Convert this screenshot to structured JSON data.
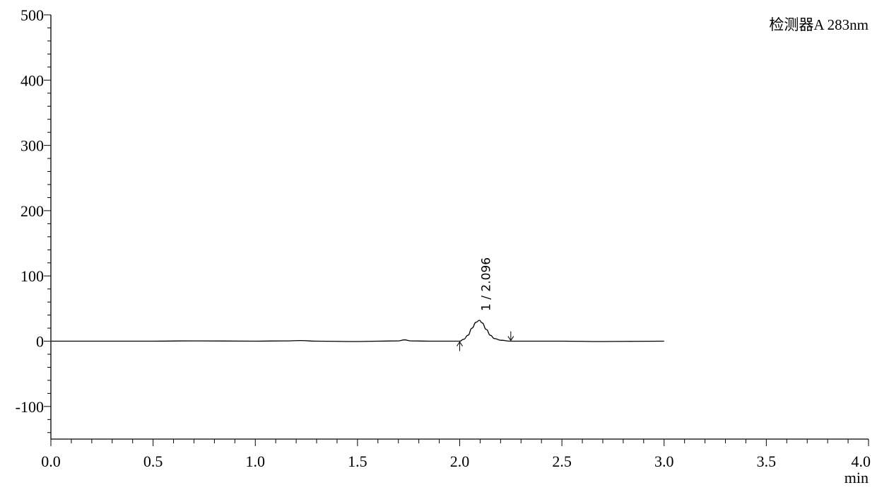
{
  "chart_data": {
    "type": "line",
    "detector_label": "检测器A 283nm",
    "x_unit": "min",
    "xlim": [
      0.0,
      4.0
    ],
    "ylim": [
      -150,
      500
    ],
    "x_ticks": [
      "0.0",
      "0.5",
      "1.0",
      "1.5",
      "2.0",
      "2.5",
      "3.0",
      "3.5",
      "4.0"
    ],
    "y_ticks": [
      "500",
      "400",
      "300",
      "200",
      "100",
      "0",
      "-100"
    ],
    "x_tick_values": [
      0.0,
      0.5,
      1.0,
      1.5,
      2.0,
      2.5,
      3.0,
      3.5,
      4.0
    ],
    "y_tick_values": [
      500,
      400,
      300,
      200,
      100,
      0,
      -100
    ],
    "series": [
      {
        "x": [
          0.0,
          0.5,
          0.7,
          1.0,
          1.15,
          1.22,
          1.3,
          1.5,
          1.6,
          1.7,
          1.73,
          1.76,
          1.85,
          2.0,
          2.02,
          2.04,
          2.06,
          2.08,
          2.096,
          2.11,
          2.13,
          2.15,
          2.17,
          2.2,
          2.25,
          2.5,
          2.7,
          3.0
        ],
        "y": [
          0,
          0,
          0.5,
          0,
          0.5,
          1,
          0,
          -0.5,
          0,
          0.5,
          2,
          0.5,
          0,
          0,
          3,
          9,
          20,
          29,
          32,
          28,
          18,
          9,
          4,
          1.5,
          0,
          0,
          -0.5,
          0
        ]
      }
    ],
    "peaks": [
      {
        "label": "1 / 2.096",
        "time": 2.096,
        "height": 32,
        "start": 2.0,
        "end": 2.25
      }
    ]
  }
}
